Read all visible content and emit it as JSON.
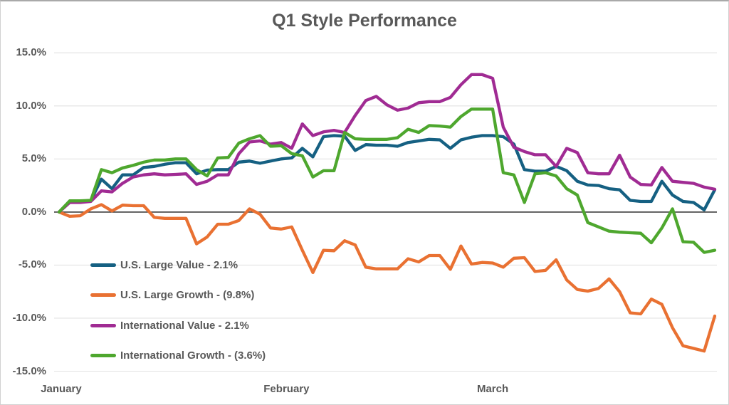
{
  "chart_data": {
    "type": "line",
    "title": "Q1 Style Performance",
    "x_axis": {
      "labels": [
        {
          "label": "January",
          "position": 0.2
        },
        {
          "label": "February",
          "position": 21.5
        },
        {
          "label": "March",
          "position": 41.0
        }
      ]
    },
    "y_axis": {
      "unit": "%",
      "min": -15,
      "max": 15,
      "ticks": [
        {
          "label": "15.0%",
          "value": 15
        },
        {
          "label": "10.0%",
          "value": 10
        },
        {
          "label": "5.0%",
          "value": 5
        },
        {
          "label": "0.0%",
          "value": 0
        },
        {
          "label": "-5.0%",
          "value": -5
        },
        {
          "label": "-10.0%",
          "value": -10
        },
        {
          "label": "-15.0%",
          "value": -15
        }
      ]
    },
    "grid": "horizontal-light",
    "legend_position": "inside-lower-left",
    "series": [
      {
        "id": "us-large-value",
        "name": "U.S. Large Value",
        "legend_label": "U.S. Large Value - 2.1%",
        "final_return": "2.1%",
        "color": "#156082",
        "values": [
          0.0,
          1.0,
          1.0,
          1.1,
          3.1,
          2.2,
          3.5,
          3.5,
          4.2,
          4.3,
          4.5,
          4.65,
          4.65,
          3.6,
          3.95,
          4.0,
          4.0,
          4.7,
          4.8,
          4.6,
          4.8,
          5.0,
          5.1,
          6.0,
          5.2,
          7.1,
          7.2,
          7.15,
          5.8,
          6.35,
          6.3,
          6.3,
          6.2,
          6.55,
          6.7,
          6.85,
          6.8,
          6.0,
          6.8,
          7.05,
          7.2,
          7.2,
          7.1,
          6.4,
          4.0,
          3.85,
          3.85,
          4.3,
          3.9,
          2.9,
          2.55,
          2.5,
          2.2,
          2.1,
          1.1,
          1.0,
          1.0,
          2.9,
          1.6,
          1.0,
          0.9,
          0.2,
          2.1
        ]
      },
      {
        "id": "us-large-growth",
        "name": "U.S. Large Growth",
        "legend_label": "U.S. Large Growth - (9.8%)",
        "final_return": "(9.8%)",
        "color": "#E97132",
        "values": [
          0.0,
          -0.4,
          -0.35,
          0.3,
          0.7,
          0.1,
          0.65,
          0.6,
          0.6,
          -0.5,
          -0.6,
          -0.6,
          -0.6,
          -3.0,
          -2.35,
          -1.15,
          -1.15,
          -0.8,
          0.3,
          -0.2,
          -1.5,
          -1.6,
          -1.4,
          -3.6,
          -5.7,
          -3.6,
          -3.65,
          -2.7,
          -3.1,
          -5.2,
          -5.35,
          -5.35,
          -5.35,
          -4.4,
          -4.7,
          -4.1,
          -4.1,
          -5.4,
          -3.2,
          -4.9,
          -4.75,
          -4.8,
          -5.2,
          -4.35,
          -4.3,
          -5.6,
          -5.5,
          -4.5,
          -6.4,
          -7.3,
          -7.45,
          -7.2,
          -6.3,
          -7.5,
          -9.5,
          -9.6,
          -8.2,
          -8.7,
          -10.9,
          -12.6,
          -12.85,
          -13.1,
          -9.8
        ]
      },
      {
        "id": "international-value",
        "name": "International Value",
        "legend_label": "International Value - 2.1%",
        "final_return": "2.1%",
        "color": "#A02B93",
        "values": [
          0.0,
          0.9,
          0.9,
          1.0,
          2.0,
          1.9,
          2.7,
          3.3,
          3.5,
          3.6,
          3.5,
          3.55,
          3.6,
          2.6,
          2.9,
          3.5,
          3.5,
          5.5,
          6.6,
          6.7,
          6.4,
          6.55,
          6.0,
          8.3,
          7.2,
          7.55,
          7.7,
          7.5,
          9.1,
          10.5,
          10.9,
          10.1,
          9.6,
          9.8,
          10.3,
          10.4,
          10.4,
          10.8,
          12.0,
          12.95,
          12.95,
          12.6,
          8.0,
          6.1,
          5.7,
          5.4,
          5.4,
          4.3,
          6.0,
          5.6,
          3.7,
          3.6,
          3.6,
          5.35,
          3.3,
          2.6,
          2.55,
          4.2,
          2.9,
          2.8,
          2.7,
          2.35,
          2.15
        ]
      },
      {
        "id": "international-growth",
        "name": "International Growth",
        "legend_label": "International Growth - (3.6%)",
        "final_return": "(3.6%)",
        "color": "#4EA72E",
        "values": [
          0.0,
          1.05,
          1.05,
          1.1,
          4.0,
          3.7,
          4.15,
          4.4,
          4.7,
          4.9,
          4.9,
          5.0,
          5.0,
          4.0,
          3.4,
          5.1,
          5.15,
          6.5,
          6.9,
          7.2,
          6.2,
          6.25,
          5.5,
          5.3,
          3.3,
          3.9,
          3.9,
          7.5,
          6.9,
          6.85,
          6.85,
          6.85,
          7.0,
          7.8,
          7.5,
          8.15,
          8.1,
          8.0,
          9.0,
          9.7,
          9.7,
          9.7,
          3.7,
          3.5,
          0.9,
          3.6,
          3.7,
          3.4,
          2.2,
          1.6,
          -1.0,
          -1.4,
          -1.8,
          -1.9,
          -1.95,
          -2.0,
          -2.9,
          -1.5,
          0.3,
          -2.8,
          -2.85,
          -3.8,
          -3.6
        ]
      }
    ]
  },
  "colors": {
    "background": "#FFFFFF",
    "border": "#A9A9A9",
    "title_text": "#595959",
    "axis_text": "#595959",
    "gridline": "#E2E2E2",
    "zero_axis": "#3F3F3F"
  }
}
